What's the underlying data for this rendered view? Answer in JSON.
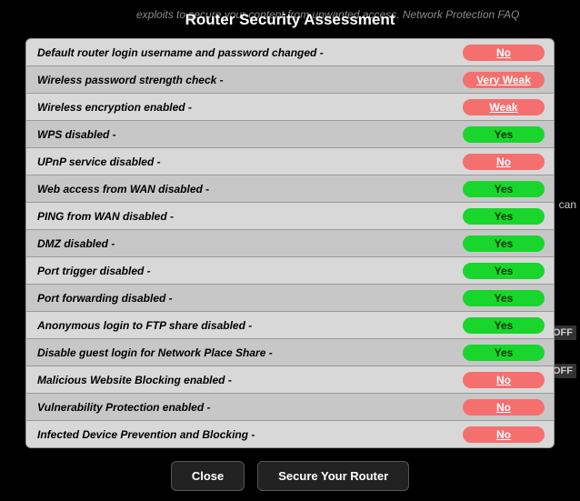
{
  "bgText": "exploits to secure your content from unwanted access.\nNetwork Protection FAQ",
  "scanText": "can",
  "offText": "OFF",
  "dialog": {
    "title": "Router Security Assessment",
    "rows": [
      {
        "label": "Default router login username and password changed -",
        "value": "No",
        "status": "bad"
      },
      {
        "label": "Wireless password strength check -",
        "value": "Very Weak",
        "status": "bad"
      },
      {
        "label": "Wireless encryption enabled -",
        "value": "Weak",
        "status": "bad"
      },
      {
        "label": "WPS disabled -",
        "value": "Yes",
        "status": "good"
      },
      {
        "label": "UPnP service disabled -",
        "value": "No",
        "status": "bad"
      },
      {
        "label": "Web access from WAN disabled -",
        "value": "Yes",
        "status": "good"
      },
      {
        "label": "PING from WAN disabled -",
        "value": "Yes",
        "status": "good"
      },
      {
        "label": "DMZ disabled -",
        "value": "Yes",
        "status": "good"
      },
      {
        "label": "Port trigger disabled -",
        "value": "Yes",
        "status": "good"
      },
      {
        "label": "Port forwarding disabled -",
        "value": "Yes",
        "status": "good"
      },
      {
        "label": "Anonymous login to FTP share disabled -",
        "value": "Yes",
        "status": "good"
      },
      {
        "label": "Disable guest login for Network Place Share -",
        "value": "Yes",
        "status": "good"
      },
      {
        "label": "Malicious Website Blocking enabled -",
        "value": "No",
        "status": "bad"
      },
      {
        "label": "Vulnerability Protection enabled -",
        "value": "No",
        "status": "bad"
      },
      {
        "label": "Infected Device Prevention and Blocking -",
        "value": "No",
        "status": "bad"
      }
    ],
    "buttons": {
      "close": "Close",
      "secure": "Secure Your Router"
    }
  },
  "colors": {
    "good_bg": "#18d62c",
    "bad_bg": "#f56f6f"
  }
}
